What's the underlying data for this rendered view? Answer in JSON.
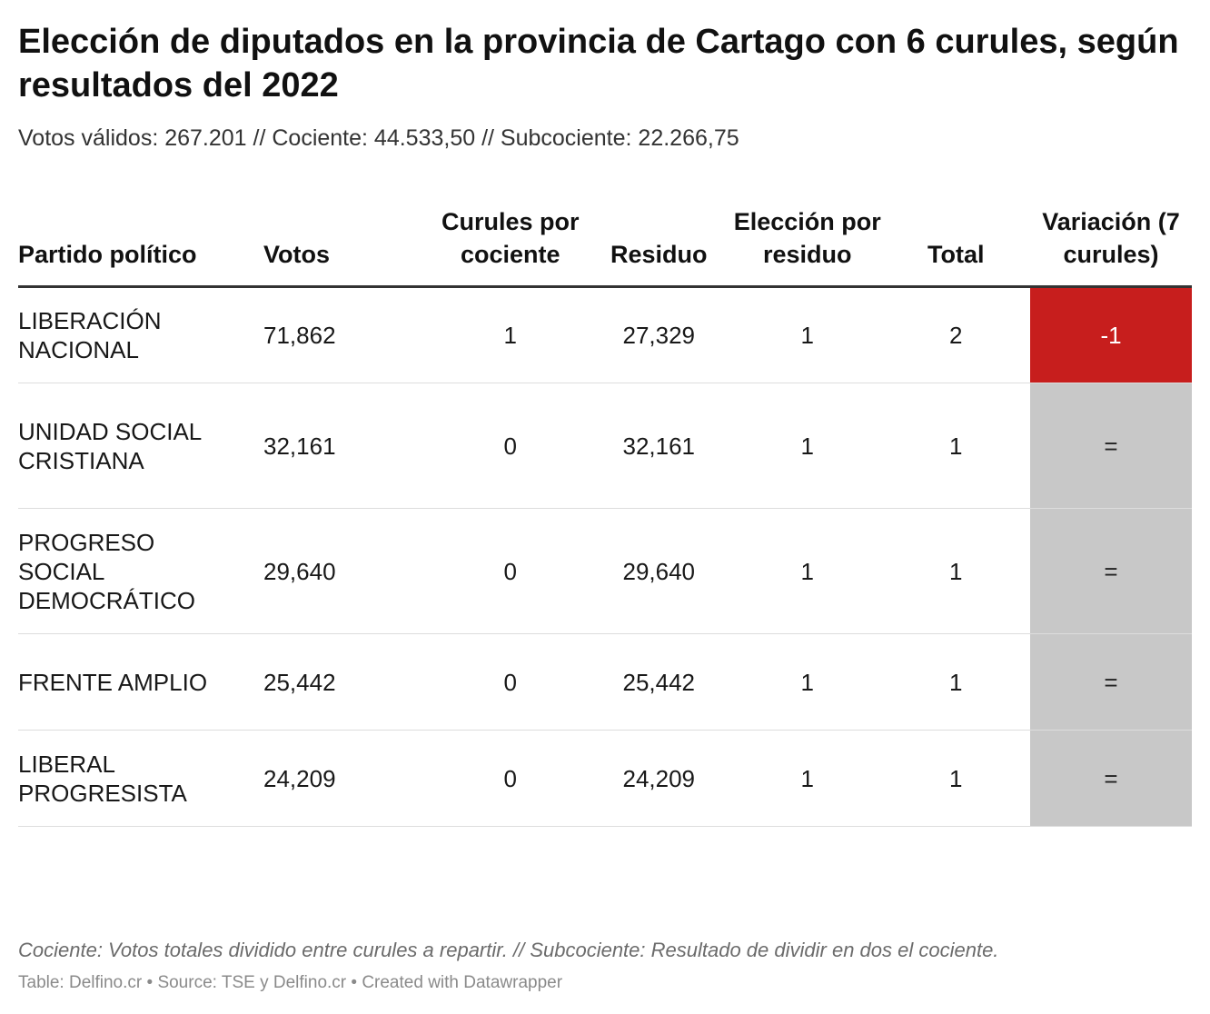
{
  "header": {
    "title": "Elección de diputados en la provincia de Cartago con 6 curules, según resultados del 2022",
    "subtitle": "Votos válidos: 267.201 // Cociente: 44.533,50 // Subcociente: 22.266,75"
  },
  "chart_data": {
    "type": "table",
    "columns": [
      "Partido político",
      "Votos",
      "Curules por cociente",
      "Residuo",
      "Elección por residuo",
      "Total",
      "Variación (7 curules)"
    ],
    "rows": [
      {
        "party": "LIBERACIÓN NACIONAL",
        "votes": "71,862",
        "quotient_seats": "1",
        "remainder": "27,329",
        "remainder_seats": "1",
        "total": "2",
        "variation": "-1",
        "variation_color": "#c71e1d"
      },
      {
        "party": "UNIDAD SOCIAL CRISTIANA",
        "votes": "32,161",
        "quotient_seats": "0",
        "remainder": "32,161",
        "remainder_seats": "1",
        "total": "1",
        "variation": "=",
        "variation_color": "#c8c8c8"
      },
      {
        "party": "PROGRESO SOCIAL DEMOCRÁTICO",
        "votes": "29,640",
        "quotient_seats": "0",
        "remainder": "29,640",
        "remainder_seats": "1",
        "total": "1",
        "variation": "=",
        "variation_color": "#c8c8c8"
      },
      {
        "party": "FRENTE AMPLIO",
        "votes": "25,442",
        "quotient_seats": "0",
        "remainder": "25,442",
        "remainder_seats": "1",
        "total": "1",
        "variation": "=",
        "variation_color": "#c8c8c8"
      },
      {
        "party": "LIBERAL PROGRESISTA",
        "votes": "24,209",
        "quotient_seats": "0",
        "remainder": "24,209",
        "remainder_seats": "1",
        "total": "1",
        "variation": "=",
        "variation_color": "#c8c8c8"
      }
    ]
  },
  "footer": {
    "notes": "Cociente: Votos totales dividido entre curules a repartir. // Subcociente: Resultado de dividir en dos el cociente.",
    "credit": "Table: Delfino.cr • Source: TSE y Delfino.cr • Created with Datawrapper"
  }
}
